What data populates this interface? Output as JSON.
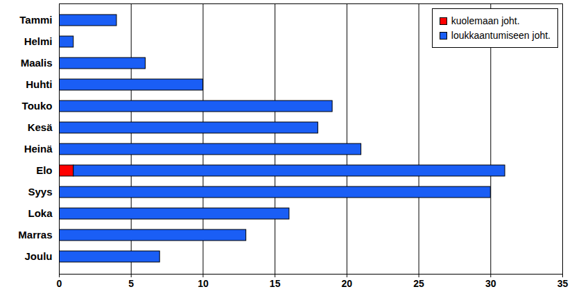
{
  "chart_data": {
    "type": "bar",
    "orientation": "horizontal",
    "stacked": true,
    "categories": [
      "Tammi",
      "Helmi",
      "Maalis",
      "Huhti",
      "Touko",
      "Kesä",
      "Heinä",
      "Elo",
      "Syys",
      "Loka",
      "Marras",
      "Joulu"
    ],
    "series": [
      {
        "name": "kuolemaan joht.",
        "color": "#ff0000",
        "values": [
          0,
          0,
          0,
          0,
          0,
          0,
          0,
          1,
          0,
          0,
          0,
          0
        ]
      },
      {
        "name": "loukkaantumiseen joht.",
        "color": "#1a5ef5",
        "values": [
          4,
          1,
          6,
          10,
          19,
          18,
          21,
          30,
          30,
          16,
          13,
          7
        ]
      }
    ],
    "xlim": [
      0,
      35
    ],
    "xticks": [
      0,
      5,
      10,
      15,
      20,
      25,
      30,
      35
    ],
    "grid": true,
    "legend": "top-right"
  }
}
